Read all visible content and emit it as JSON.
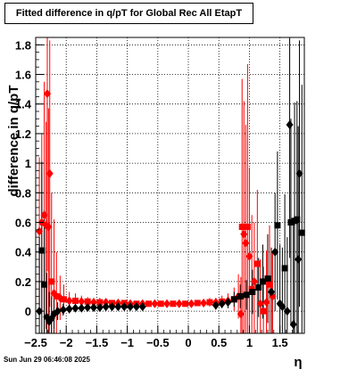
{
  "title": "Fitted difference in q/pT for Global Rec All EtapT",
  "footer": "Sun Jun 29 06:46:08 2025",
  "chart_data": {
    "type": "scatter",
    "title": "Fitted difference in q/pT for Global Rec All EtapT",
    "xlabel": "η",
    "ylabel": "difference in q/pT",
    "xlim": [
      -2.5,
      1.9
    ],
    "ylim": [
      -0.15,
      1.85
    ],
    "grid": true,
    "x_ticks": [
      -2.5,
      -2,
      -1.5,
      -1,
      -0.5,
      0,
      0.5,
      1,
      1.5
    ],
    "x_tick_labels": [
      "−2.5",
      "−2",
      "−1.5",
      "−1",
      "−0.5",
      "0",
      "0.5",
      "1",
      "1.5"
    ],
    "y_ticks": [
      0,
      0.2,
      0.4,
      0.6,
      0.8,
      1,
      1.2,
      1.4,
      1.6,
      1.8
    ],
    "y_tick_labels": [
      "0",
      "0.2",
      "0.4",
      "0.6",
      "0.8",
      "1",
      "1.2",
      "1.4",
      "1.6",
      "1.8"
    ],
    "series": [
      {
        "color": "#ff0000",
        "marker": "mixed",
        "points": [
          {
            "x": -2.44,
            "y": 0.54,
            "err": 0.5,
            "m": "d"
          },
          {
            "x": -2.4,
            "y": 0.6,
            "err": 0.6,
            "m": "d"
          },
          {
            "x": -2.36,
            "y": 0.65,
            "err": 0.9,
            "m": "d"
          },
          {
            "x": -2.33,
            "y": 0.58,
            "err": 0.7,
            "m": "d"
          },
          {
            "x": -2.31,
            "y": 1.47,
            "err": 1.2,
            "m": "d"
          },
          {
            "x": -2.29,
            "y": 0.57,
            "err": 0.8,
            "m": "d"
          },
          {
            "x": -2.27,
            "y": 0.93,
            "err": 0.9,
            "m": "d"
          },
          {
            "x": -2.24,
            "y": 0.2,
            "err": 0.6,
            "m": "s"
          },
          {
            "x": -2.2,
            "y": 0.12,
            "err": 0.5,
            "m": "d"
          },
          {
            "x": -2.16,
            "y": 0.1,
            "err": 0.3,
            "m": "s"
          },
          {
            "x": -2.1,
            "y": 0.09,
            "err": 0.15,
            "m": "d"
          },
          {
            "x": -2.04,
            "y": 0.08,
            "err": 0.1,
            "m": "s"
          },
          {
            "x": -1.95,
            "y": 0.07,
            "err": 0.06,
            "m": "d"
          },
          {
            "x": -1.85,
            "y": 0.07,
            "err": 0.05,
            "m": "s"
          },
          {
            "x": -1.75,
            "y": 0.065,
            "err": 0.04,
            "m": "d"
          },
          {
            "x": -1.65,
            "y": 0.065,
            "err": 0.03,
            "m": "s"
          },
          {
            "x": -1.55,
            "y": 0.06,
            "err": 0.03,
            "m": "d"
          },
          {
            "x": -1.45,
            "y": 0.06,
            "err": 0.03,
            "m": "s"
          },
          {
            "x": -1.35,
            "y": 0.06,
            "err": 0.02,
            "m": "d"
          },
          {
            "x": -1.25,
            "y": 0.055,
            "err": 0.02,
            "m": "s"
          },
          {
            "x": -1.15,
            "y": 0.055,
            "err": 0.02,
            "m": "d"
          },
          {
            "x": -1.05,
            "y": 0.055,
            "err": 0.02,
            "m": "s"
          },
          {
            "x": -0.95,
            "y": 0.05,
            "err": 0.02,
            "m": "d"
          },
          {
            "x": -0.85,
            "y": 0.05,
            "err": 0.02,
            "m": "s"
          },
          {
            "x": -0.75,
            "y": 0.05,
            "err": 0.02,
            "m": "d"
          },
          {
            "x": -0.65,
            "y": 0.05,
            "err": 0.02,
            "m": "s"
          },
          {
            "x": -0.55,
            "y": 0.05,
            "err": 0.02,
            "m": "d"
          },
          {
            "x": -0.45,
            "y": 0.05,
            "err": 0.02,
            "m": "s"
          },
          {
            "x": -0.35,
            "y": 0.05,
            "err": 0.02,
            "m": "d"
          },
          {
            "x": -0.25,
            "y": 0.05,
            "err": 0.02,
            "m": "s"
          },
          {
            "x": -0.15,
            "y": 0.05,
            "err": 0.02,
            "m": "d"
          },
          {
            "x": -0.05,
            "y": 0.05,
            "err": 0.02,
            "m": "s"
          },
          {
            "x": 0.05,
            "y": 0.05,
            "err": 0.02,
            "m": "d"
          },
          {
            "x": 0.15,
            "y": 0.055,
            "err": 0.02,
            "m": "s"
          },
          {
            "x": 0.25,
            "y": 0.055,
            "err": 0.02,
            "m": "d"
          },
          {
            "x": 0.35,
            "y": 0.06,
            "err": 0.03,
            "m": "s"
          },
          {
            "x": 0.45,
            "y": 0.06,
            "err": 0.03,
            "m": "d"
          },
          {
            "x": 0.55,
            "y": 0.065,
            "err": 0.04,
            "m": "s"
          },
          {
            "x": 0.65,
            "y": 0.07,
            "err": 0.05,
            "m": "d"
          },
          {
            "x": 0.75,
            "y": 0.08,
            "err": 0.08,
            "m": "s"
          },
          {
            "x": 0.82,
            "y": 0.1,
            "err": 0.15,
            "m": "d"
          },
          {
            "x": 0.86,
            "y": -0.02,
            "err": 0.25,
            "m": "d"
          },
          {
            "x": 0.88,
            "y": 0.57,
            "err": 1.0,
            "m": "s"
          },
          {
            "x": 0.91,
            "y": 0.52,
            "err": 0.9,
            "m": "d"
          },
          {
            "x": 0.94,
            "y": 0.46,
            "err": 0.8,
            "m": "d"
          },
          {
            "x": 0.97,
            "y": 0.57,
            "err": 1.1,
            "m": "s"
          },
          {
            "x": 1.0,
            "y": 0.37,
            "err": 0.6,
            "m": "d"
          },
          {
            "x": 1.04,
            "y": 0.15,
            "err": 0.5,
            "m": "s"
          },
          {
            "x": 1.08,
            "y": 0.2,
            "err": 0.4,
            "m": "d"
          },
          {
            "x": 1.13,
            "y": 0.32,
            "err": 0.5,
            "m": "s"
          },
          {
            "x": 1.18,
            "y": 0.05,
            "err": 0.3,
            "m": "d"
          },
          {
            "x": 1.23,
            "y": 0.0,
            "err": 0.3,
            "m": "s"
          },
          {
            "x": 1.28,
            "y": 0.06,
            "err": 0.35,
            "m": "d"
          },
          {
            "x": 1.33,
            "y": 0.18,
            "err": 0.4,
            "m": "s"
          },
          {
            "x": 1.38,
            "y": 0.1,
            "err": 0.3,
            "m": "d"
          }
        ]
      },
      {
        "color": "#000000",
        "marker": "mixed",
        "points": [
          {
            "x": -2.44,
            "y": 0.0,
            "err": 0.5,
            "m": "d"
          },
          {
            "x": -2.4,
            "y": 0.41,
            "err": 0.6,
            "m": "s"
          },
          {
            "x": -2.36,
            "y": 0.18,
            "err": 0.5,
            "m": "s"
          },
          {
            "x": -2.32,
            "y": -0.04,
            "err": 0.3,
            "m": "d"
          },
          {
            "x": -2.28,
            "y": -0.07,
            "err": 0.2,
            "m": "d"
          },
          {
            "x": -2.24,
            "y": -0.05,
            "err": 0.15,
            "m": "d"
          },
          {
            "x": -2.2,
            "y": -0.02,
            "err": 0.1,
            "m": "d"
          },
          {
            "x": -2.14,
            "y": 0.0,
            "err": 0.06,
            "m": "d"
          },
          {
            "x": -2.05,
            "y": 0.01,
            "err": 0.04,
            "m": "d"
          },
          {
            "x": -1.95,
            "y": 0.015,
            "err": 0.03,
            "m": "d"
          },
          {
            "x": -1.85,
            "y": 0.02,
            "err": 0.02,
            "m": "d"
          },
          {
            "x": -1.75,
            "y": 0.02,
            "err": 0.02,
            "m": "d"
          },
          {
            "x": -1.65,
            "y": 0.025,
            "err": 0.02,
            "m": "d"
          },
          {
            "x": -1.55,
            "y": 0.025,
            "err": 0.02,
            "m": "d"
          },
          {
            "x": -1.45,
            "y": 0.025,
            "err": 0.02,
            "m": "d"
          },
          {
            "x": -1.35,
            "y": 0.03,
            "err": 0.02,
            "m": "d"
          },
          {
            "x": -1.25,
            "y": 0.03,
            "err": 0.02,
            "m": "d"
          },
          {
            "x": -1.15,
            "y": 0.03,
            "err": 0.02,
            "m": "d"
          },
          {
            "x": -1.05,
            "y": 0.03,
            "err": 0.02,
            "m": "d"
          },
          {
            "x": -0.95,
            "y": 0.03,
            "err": 0.02,
            "m": "d"
          },
          {
            "x": -0.85,
            "y": 0.03,
            "err": 0.02,
            "m": "d"
          },
          {
            "x": -0.75,
            "y": 0.03,
            "err": 0.02,
            "m": "d"
          },
          {
            "x": 0.45,
            "y": 0.04,
            "err": 0.03,
            "m": "d"
          },
          {
            "x": 0.55,
            "y": 0.05,
            "err": 0.03,
            "m": "d"
          },
          {
            "x": 0.65,
            "y": 0.06,
            "err": 0.04,
            "m": "d"
          },
          {
            "x": 0.75,
            "y": 0.08,
            "err": 0.05,
            "m": "s"
          },
          {
            "x": 0.85,
            "y": 0.1,
            "err": 0.08,
            "m": "s"
          },
          {
            "x": 0.95,
            "y": 0.11,
            "err": 0.1,
            "m": "s"
          },
          {
            "x": 1.05,
            "y": 0.13,
            "err": 0.15,
            "m": "s"
          },
          {
            "x": 1.15,
            "y": 0.16,
            "err": 0.2,
            "m": "s"
          },
          {
            "x": 1.22,
            "y": 0.2,
            "err": 0.25,
            "m": "s"
          },
          {
            "x": 1.3,
            "y": 0.22,
            "err": 0.3,
            "m": "s"
          },
          {
            "x": 1.36,
            "y": 0.13,
            "err": 0.3,
            "m": "d"
          },
          {
            "x": 1.42,
            "y": 0.4,
            "err": 0.4,
            "m": "d"
          },
          {
            "x": 1.46,
            "y": 0.58,
            "err": 0.5,
            "m": "s"
          },
          {
            "x": 1.5,
            "y": 0.05,
            "err": 0.4,
            "m": "d"
          },
          {
            "x": 1.54,
            "y": 0.03,
            "err": 0.4,
            "m": "d"
          },
          {
            "x": 1.58,
            "y": 0.29,
            "err": 0.5,
            "m": "s"
          },
          {
            "x": 1.62,
            "y": 0.0,
            "err": 0.5,
            "m": "d"
          },
          {
            "x": 1.66,
            "y": 1.26,
            "err": 0.9,
            "m": "d"
          },
          {
            "x": 1.68,
            "y": 0.6,
            "err": 0.7,
            "m": "s"
          },
          {
            "x": 1.72,
            "y": -0.09,
            "err": 0.7,
            "m": "d"
          },
          {
            "x": 1.74,
            "y": 0.61,
            "err": 0.8,
            "m": "s"
          },
          {
            "x": 1.78,
            "y": 0.62,
            "err": 0.8,
            "m": "s"
          },
          {
            "x": 1.8,
            "y": 0.35,
            "err": 0.9,
            "m": "d"
          },
          {
            "x": 1.82,
            "y": 0.93,
            "err": 0.9,
            "m": "d"
          },
          {
            "x": 1.86,
            "y": 0.53,
            "err": 1.0,
            "m": "s"
          }
        ]
      }
    ]
  }
}
